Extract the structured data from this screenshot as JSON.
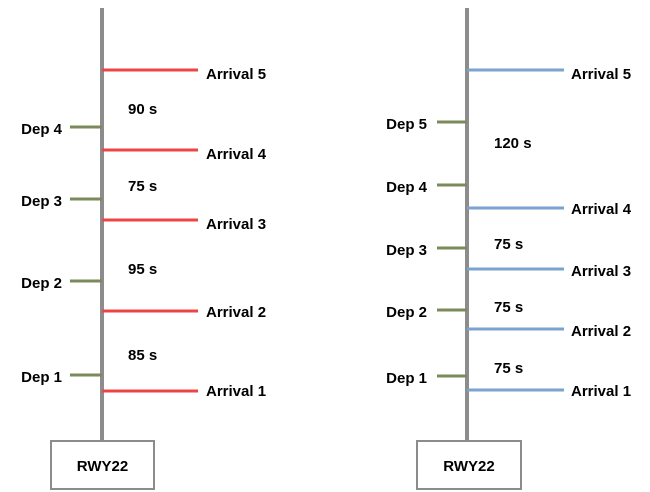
{
  "diagrams": [
    {
      "runway_label": "RWY22",
      "arrival_color": "#ee4444",
      "departure_color": "#7a8a5a",
      "arrivals": [
        "Arrival 1",
        "Arrival 2",
        "Arrival 3",
        "Arrival 4",
        "Arrival 5"
      ],
      "departures": [
        "Dep 1",
        "Dep 2",
        "Dep 3",
        "Dep 4"
      ],
      "intervals": [
        "85 s",
        "95 s",
        "75 s",
        "90 s"
      ]
    },
    {
      "runway_label": "RWY22",
      "arrival_color": "#7aa3cf",
      "departure_color": "#7a8a5a",
      "arrivals": [
        "Arrival 1",
        "Arrival 2",
        "Arrival 3",
        "Arrival 4",
        "Arrival 5"
      ],
      "departures": [
        "Dep 1",
        "Dep 2",
        "Dep 3",
        "Dep 4",
        "Dep 5"
      ],
      "intervals": [
        "75 s",
        "75 s",
        "75 s",
        "120 s"
      ]
    }
  ]
}
